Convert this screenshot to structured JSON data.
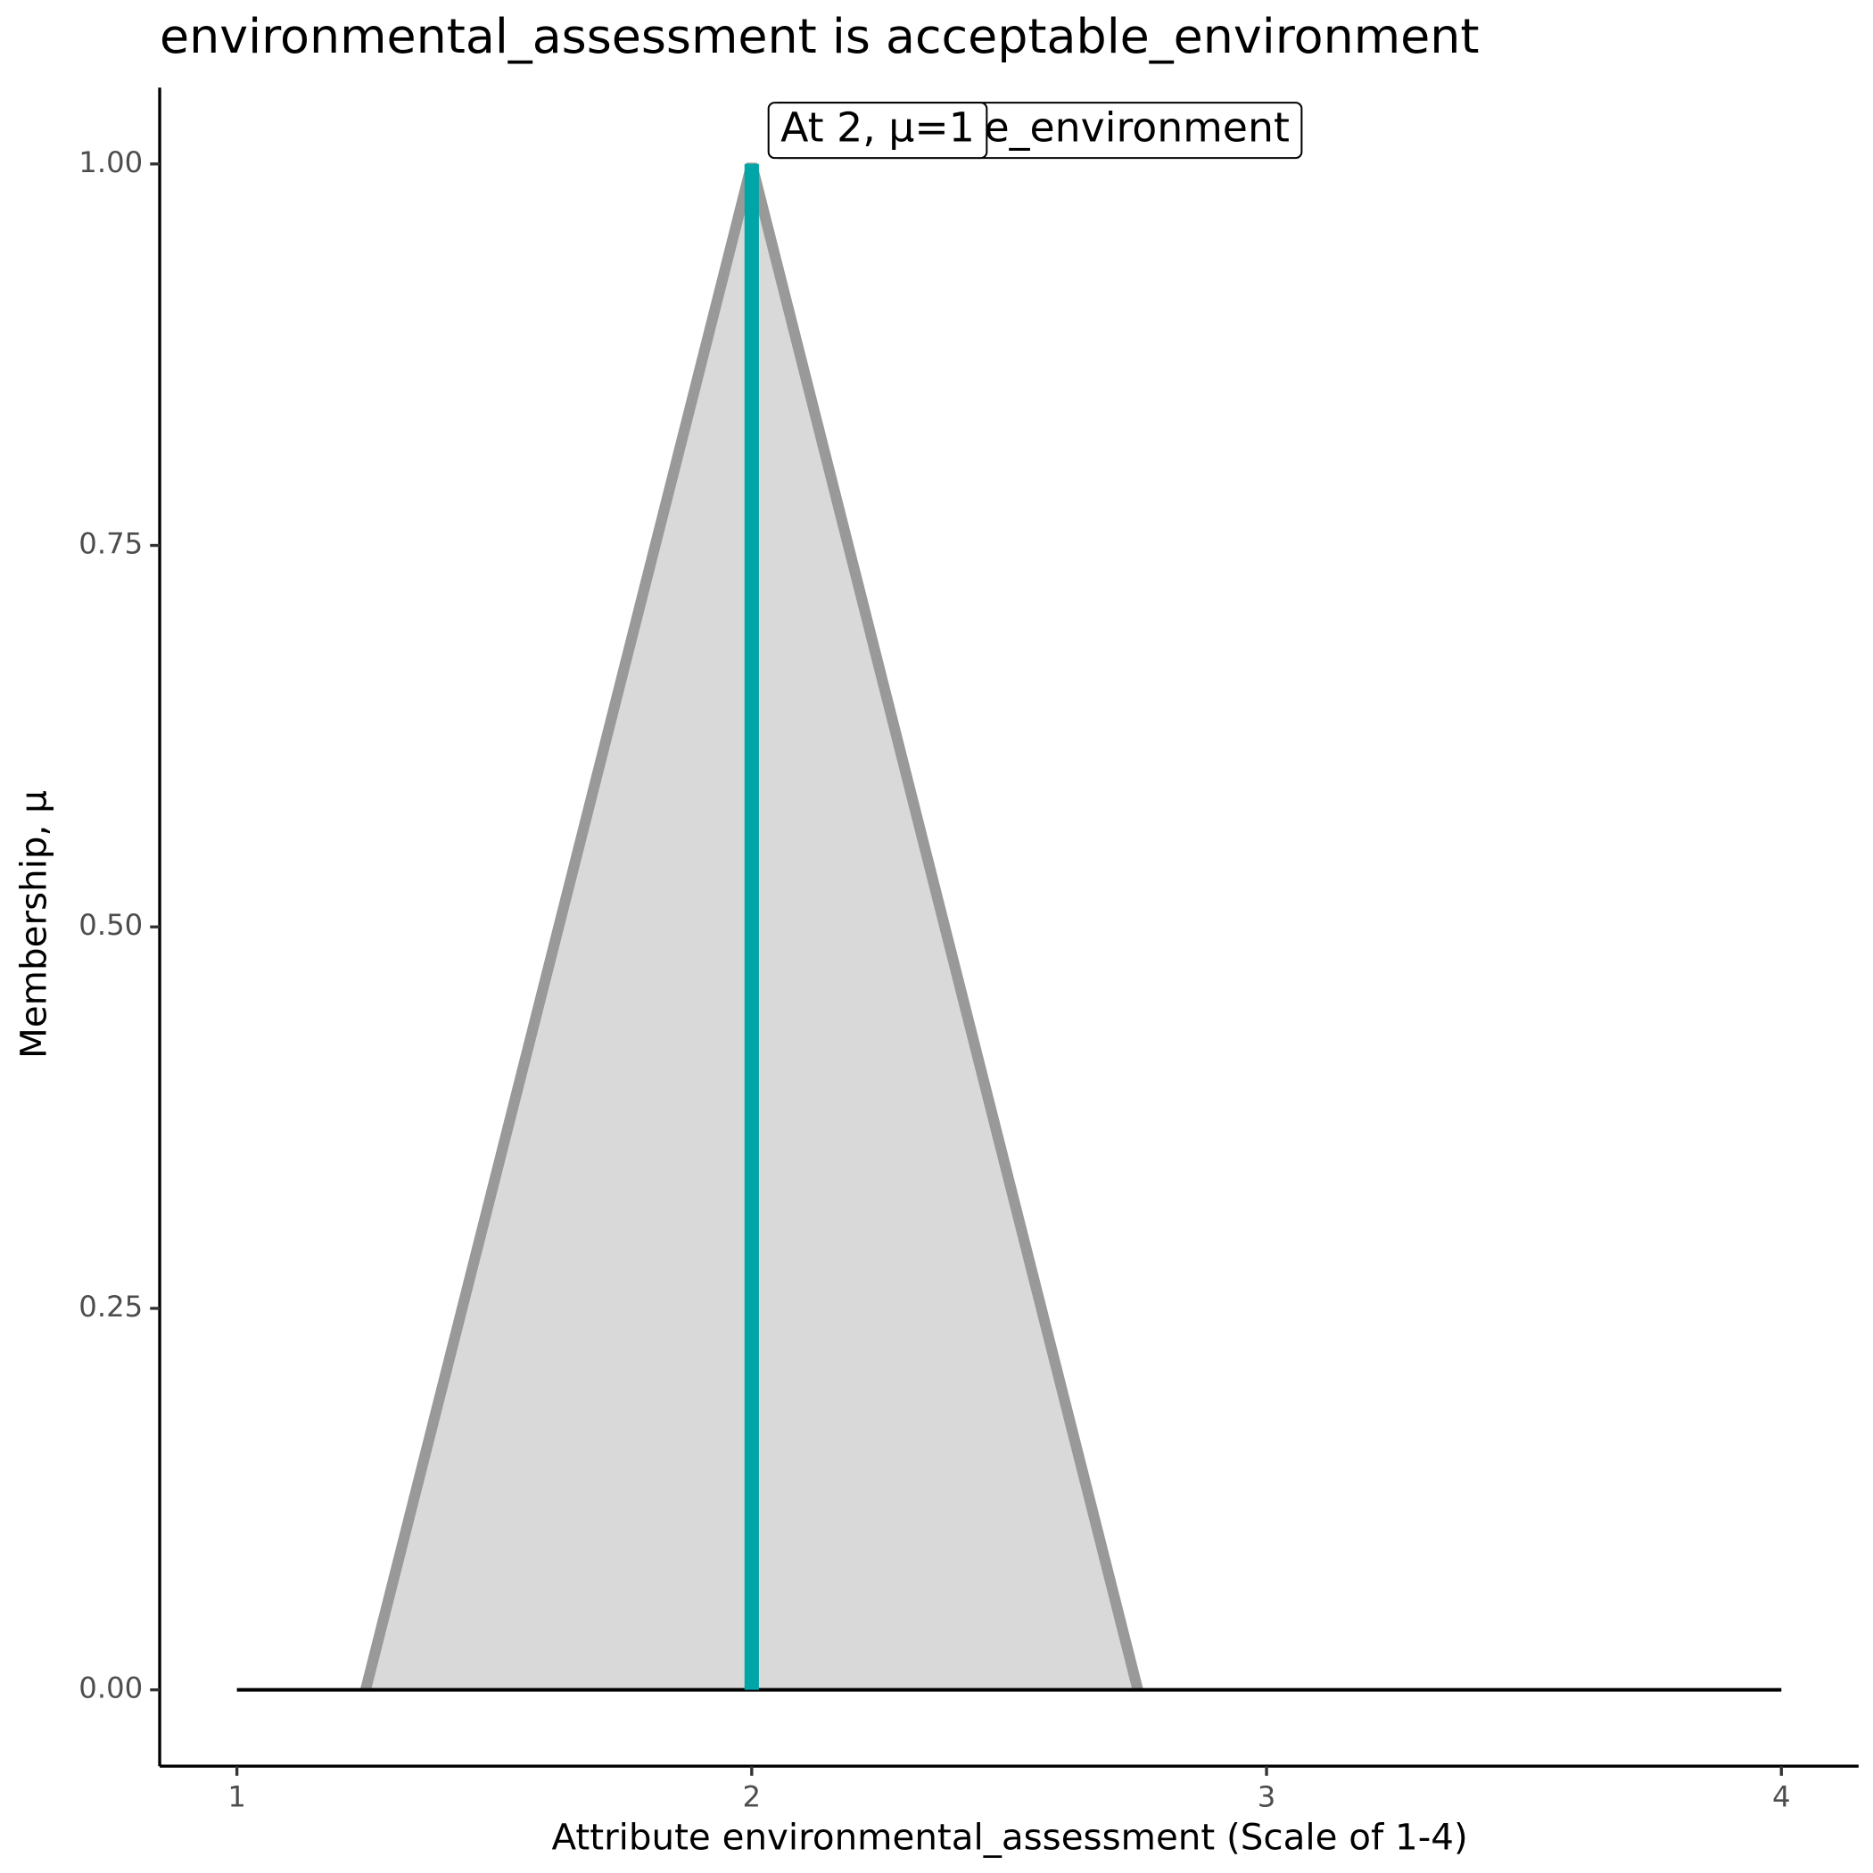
{
  "chart_data": {
    "type": "area",
    "title": "environmental_assessment is acceptable_environment",
    "x_label": "Attribute environmental_assessment (Scale of 1-4)",
    "y_label": "Membership, μ",
    "xlim": [
      0.85,
      4.15
    ],
    "ylim": [
      -0.05,
      1.05
    ],
    "xticks": [
      1,
      2,
      3,
      4
    ],
    "yticks": [
      {
        "value": 0,
        "label": "0.00"
      },
      {
        "value": 0.25,
        "label": "0.25"
      },
      {
        "value": 0.5,
        "label": "0.50"
      },
      {
        "value": 0.75,
        "label": "0.75"
      },
      {
        "value": 1,
        "label": "1.00"
      }
    ],
    "series": [
      {
        "x": [
          1.25,
          2,
          2.75
        ],
        "values": [
          0,
          1,
          0
        ],
        "color": "#999999",
        "fill": "#d9d9d9"
      },
      {
        "x": [
          1,
          4
        ],
        "values": [
          0,
          0
        ],
        "color": "#000000"
      },
      {
        "x": [
          2,
          2
        ],
        "values": [
          0,
          1
        ],
        "color": "#00a5a8"
      }
    ],
    "annotations": [
      "acceptable_environment",
      "At 2, μ=1"
    ]
  }
}
